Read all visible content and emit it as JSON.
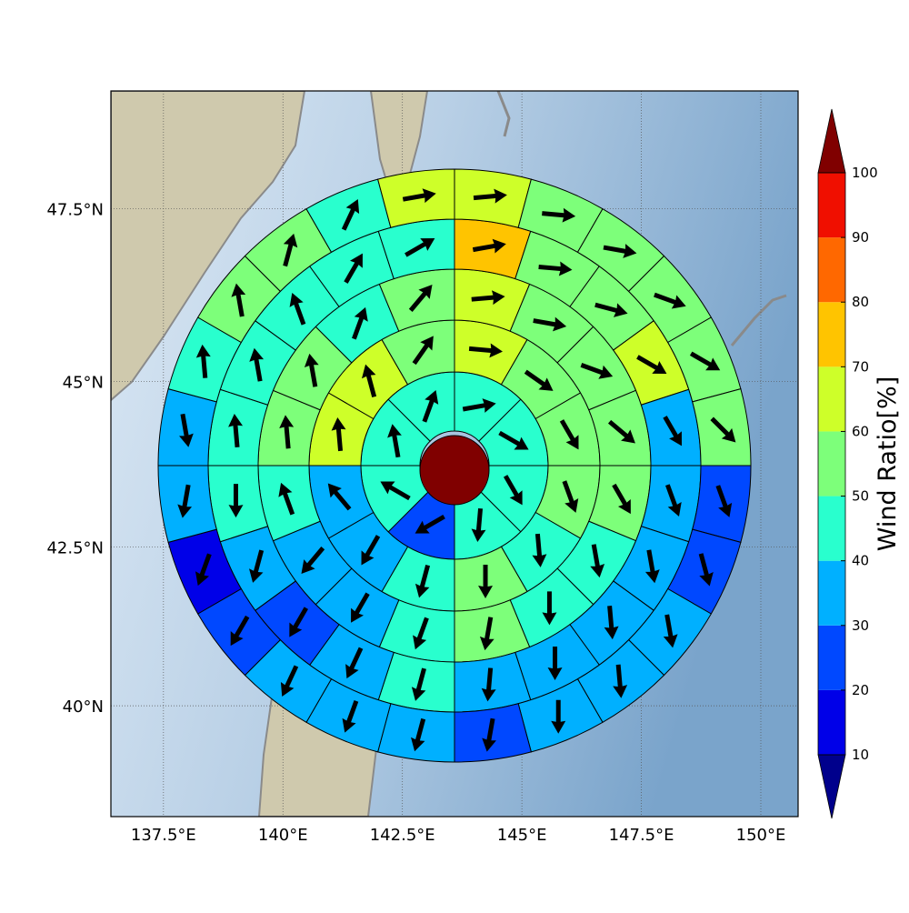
{
  "chart_data": {
    "type": "polar-grid",
    "projection": "mercator",
    "grid": true,
    "xlim": [
      136.4,
      150.78
    ],
    "ylim": [
      38.2,
      49.14
    ],
    "xticks": [
      {
        "value": 137.5,
        "label": "137.5°E"
      },
      {
        "value": 140,
        "label": "140°E"
      },
      {
        "value": 142.5,
        "label": "142.5°E"
      },
      {
        "value": 145,
        "label": "145°E"
      },
      {
        "value": 147.5,
        "label": "147.5°E"
      },
      {
        "value": 150,
        "label": "150°E"
      }
    ],
    "yticks": [
      {
        "value": 40,
        "label": "40°N"
      },
      {
        "value": 42.5,
        "label": "42.5°N"
      },
      {
        "value": 45,
        "label": "45°N"
      },
      {
        "value": 47.5,
        "label": "47.5°N"
      }
    ],
    "rings": [
      {
        "values": [
          45,
          45,
          45,
          45,
          25,
          45,
          45,
          45
        ],
        "directions": [
          80,
          120,
          150,
          185,
          240,
          300,
          350,
          20
        ]
      },
      {
        "values": [
          65,
          55,
          55,
          55,
          45,
          55,
          45,
          35,
          35,
          65,
          65,
          55
        ],
        "directions": [
          95,
          125,
          150,
          160,
          175,
          180,
          195,
          210,
          320,
          355,
          345,
          35
        ]
      },
      {
        "values": [
          65,
          55,
          55,
          55,
          55,
          45,
          45,
          55,
          45,
          35,
          35,
          45,
          55,
          55,
          45,
          55
        ],
        "directions": [
          85,
          100,
          110,
          130,
          150,
          170,
          180,
          190,
          200,
          210,
          220,
          340,
          355,
          350,
          20,
          40
        ]
      },
      {
        "values": [
          75,
          55,
          55,
          65,
          35,
          35,
          35,
          35,
          35,
          35,
          45,
          35,
          25,
          35,
          45,
          45,
          45,
          45,
          45,
          45
        ],
        "directions": [
          80,
          95,
          105,
          120,
          150,
          160,
          170,
          175,
          180,
          185,
          195,
          205,
          210,
          195,
          180,
          355,
          350,
          340,
          30,
          60
        ]
      },
      {
        "values": [
          65,
          55,
          55,
          55,
          55,
          55,
          25,
          25,
          35,
          35,
          35,
          25,
          35,
          35,
          35,
          25,
          15,
          35,
          35,
          45,
          55,
          55,
          45,
          65
        ],
        "directions": [
          85,
          95,
          100,
          110,
          120,
          135,
          160,
          165,
          170,
          175,
          180,
          190,
          195,
          200,
          205,
          210,
          200,
          190,
          170,
          355,
          350,
          15,
          25,
          80
        ]
      }
    ],
    "colorbar": {
      "label": "Wind Ratio[%]",
      "boundaries": [
        10,
        20,
        30,
        40,
        50,
        60,
        70,
        80,
        90,
        100
      ],
      "ticks": [
        10,
        20,
        30,
        40,
        50,
        60,
        70,
        80,
        90,
        100
      ],
      "colors": [
        "#0000e8",
        "#0048ff",
        "#00b0ff",
        "#29ffce",
        "#7dff7a",
        "#ceff29",
        "#ffc400",
        "#ff6800",
        "#f00f00"
      ],
      "under_color": "#00008c",
      "over_color": "#800000"
    }
  }
}
